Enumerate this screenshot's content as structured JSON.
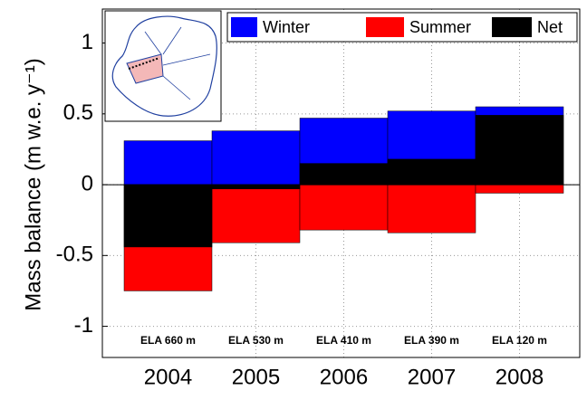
{
  "chart_data": {
    "type": "bar",
    "ylabel": "Mass balance (m w.e. y⁻¹)",
    "categories": [
      "2004",
      "2005",
      "2006",
      "2007",
      "2008"
    ],
    "series": [
      {
        "name": "Winter",
        "color": "#0000ff",
        "values": [
          0.31,
          0.38,
          0.47,
          0.52,
          0.55
        ]
      },
      {
        "name": "Summer",
        "color": "#ff0000",
        "values": [
          -0.75,
          -0.41,
          -0.32,
          -0.34,
          -0.06
        ]
      },
      {
        "name": "Net",
        "color": "#000000",
        "values": [
          -0.44,
          -0.03,
          0.15,
          0.18,
          0.49
        ]
      }
    ],
    "annotations": [
      "ELA 660 m",
      "ELA 530 m",
      "ELA 410 m",
      "ELA 390 m",
      "ELA 120 m"
    ],
    "ylim": [
      -1.22,
      1.24
    ],
    "yticks": [
      -1,
      -0.5,
      0,
      0.5,
      1
    ],
    "grid": true,
    "legend": "top-right"
  }
}
